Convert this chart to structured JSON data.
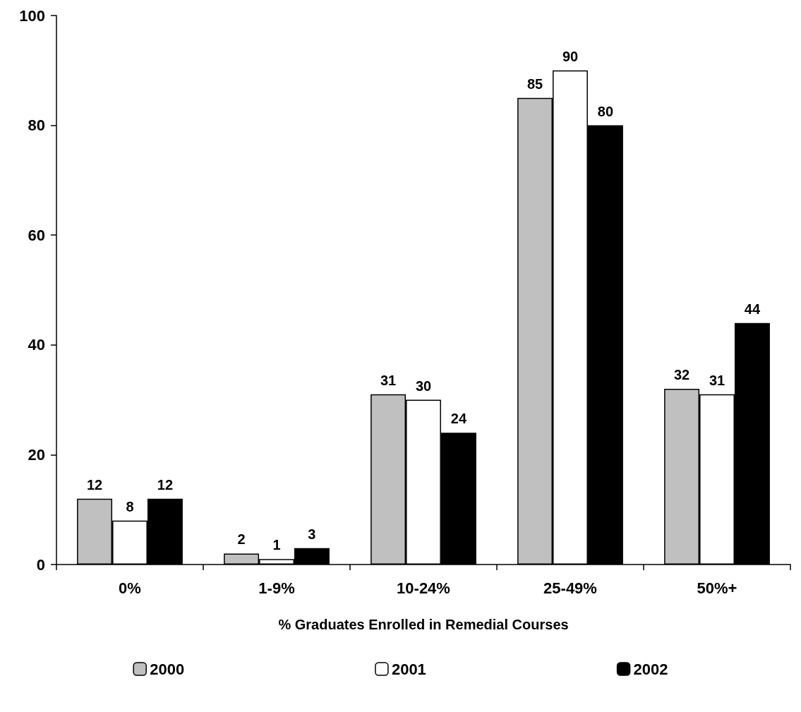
{
  "chart_data": {
    "type": "bar",
    "xlabel": "% Graduates Enrolled in Remedial Courses",
    "categories": [
      "0%",
      "1-9%",
      "10-24%",
      "25-49%",
      "50%+"
    ],
    "series": [
      {
        "name": "2000",
        "color": "#c0c0c0",
        "values": [
          12,
          2,
          31,
          85,
          32
        ]
      },
      {
        "name": "2001",
        "color": "#ffffff",
        "values": [
          8,
          1,
          30,
          90,
          31
        ]
      },
      {
        "name": "2002",
        "color": "#000000",
        "values": [
          12,
          3,
          24,
          80,
          44
        ]
      }
    ],
    "ylim": [
      0,
      100
    ],
    "yticks": [
      0,
      20,
      40,
      60,
      80,
      100
    ],
    "grid": false,
    "legend": "bottom",
    "data_labels": true
  }
}
